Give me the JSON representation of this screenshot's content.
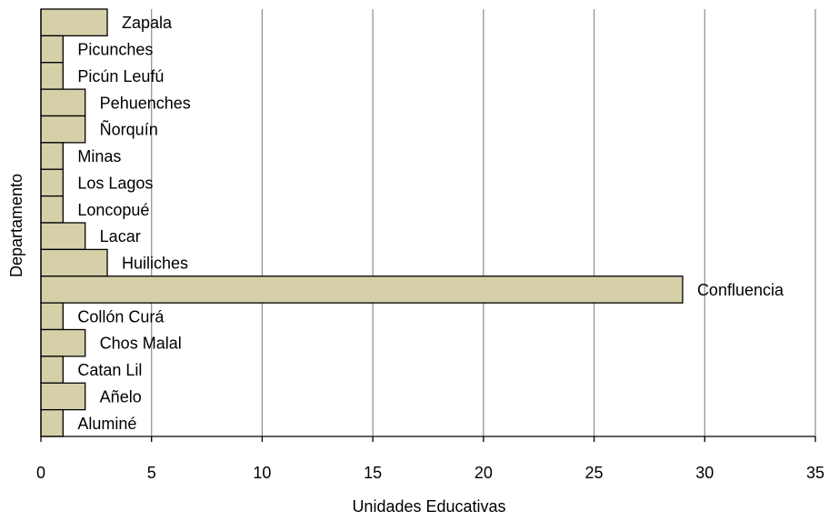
{
  "chart_data": {
    "type": "bar",
    "orientation": "horizontal",
    "categories": [
      "Zapala",
      "Picunches",
      "Picún Leufú",
      "Pehuenches",
      "Ñorquín",
      "Minas",
      "Los Lagos",
      "Loncopué",
      "Lacar",
      "Huiliches",
      "Confluencia",
      "Collón Curá",
      "Chos Malal",
      "Catan Lil",
      "Añelo",
      "Aluminé"
    ],
    "values": [
      3,
      1,
      1,
      2,
      2,
      1,
      1,
      1,
      2,
      3,
      29,
      1,
      2,
      1,
      2,
      1
    ],
    "xlabel": "Unidades Educativas",
    "ylabel": "Departamento",
    "xlim": [
      0,
      35
    ],
    "xticks": [
      "0",
      "5",
      "10",
      "15",
      "20",
      "25",
      "30",
      "35"
    ],
    "grid": "vertical",
    "legend": "none",
    "bar_color": "#d5d0a8",
    "bar_edge_color": "#000000",
    "grid_color": "#8c8c8c"
  }
}
